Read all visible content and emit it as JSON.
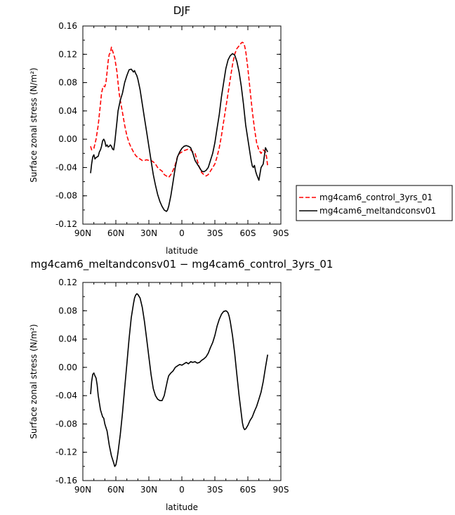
{
  "chart_data": [
    {
      "type": "line",
      "title": "DJF",
      "xlabel": "latitude",
      "ylabel": "Surface zonal stress (N/m²)",
      "xlim": [
        -90,
        90
      ],
      "ylim": [
        -0.12,
        0.16
      ],
      "x_ticks": [
        -90,
        -60,
        -30,
        0,
        30,
        60,
        90
      ],
      "x_tick_labels": [
        "90N",
        "60N",
        "30N",
        "0",
        "30S",
        "60S",
        "90S"
      ],
      "y_ticks": [
        -0.12,
        -0.08,
        -0.04,
        0.0,
        0.04,
        0.08,
        0.12,
        0.16
      ],
      "y_tick_labels": [
        "-0.12",
        "-0.08",
        "-0.04",
        "0.00",
        "0.04",
        "0.08",
        "0.12",
        "0.16"
      ],
      "grid": false,
      "legend_position": "outside-right",
      "series": [
        {
          "name": "mg4cam6_control_3yrs_01",
          "color": "#ff0000",
          "dash": "dashed",
          "x": [
            -83,
            -82,
            -80,
            -78,
            -76,
            -75,
            -74,
            -73,
            -72,
            -71,
            -70,
            -69,
            -68,
            -67,
            -66,
            -65,
            -64,
            -63,
            -62,
            -61,
            -60,
            -59,
            -58,
            -57,
            -56,
            -54,
            -52,
            -50,
            -48,
            -46,
            -44,
            -42,
            -40,
            -38,
            -36,
            -34,
            -32,
            -30,
            -28,
            -26,
            -24,
            -22,
            -20,
            -18,
            -16,
            -14,
            -12,
            -10,
            -8,
            -6,
            -4,
            -2,
            0,
            2,
            4,
            6,
            8,
            10,
            12,
            14,
            16,
            18,
            20,
            22,
            24,
            26,
            28,
            30,
            32,
            34,
            36,
            38,
            40,
            42,
            44,
            46,
            48,
            50,
            52,
            54,
            55,
            56,
            57,
            58,
            60,
            62,
            64,
            66,
            68,
            70,
            72,
            74,
            76,
            77,
            78
          ],
          "y": [
            -0.01,
            -0.015,
            -0.013,
            0.0,
            0.02,
            0.035,
            0.05,
            0.065,
            0.072,
            0.075,
            0.074,
            0.08,
            0.095,
            0.11,
            0.12,
            0.122,
            0.13,
            0.125,
            0.12,
            0.115,
            0.105,
            0.095,
            0.08,
            0.065,
            0.055,
            0.038,
            0.02,
            0.005,
            -0.005,
            -0.012,
            -0.018,
            -0.023,
            -0.026,
            -0.028,
            -0.03,
            -0.03,
            -0.029,
            -0.03,
            -0.03,
            -0.032,
            -0.035,
            -0.04,
            -0.043,
            -0.045,
            -0.05,
            -0.052,
            -0.054,
            -0.05,
            -0.044,
            -0.036,
            -0.025,
            -0.02,
            -0.018,
            -0.016,
            -0.015,
            -0.014,
            -0.015,
            -0.018,
            -0.02,
            -0.03,
            -0.04,
            -0.047,
            -0.05,
            -0.052,
            -0.05,
            -0.045,
            -0.04,
            -0.035,
            -0.025,
            -0.012,
            0.005,
            0.025,
            0.045,
            0.065,
            0.085,
            0.105,
            0.12,
            0.128,
            0.132,
            0.136,
            0.137,
            0.136,
            0.132,
            0.125,
            0.1,
            0.07,
            0.04,
            0.015,
            -0.005,
            -0.015,
            -0.02,
            -0.015,
            -0.018,
            -0.025,
            -0.038
          ]
        },
        {
          "name": "mg4cam6_meltandconsv01",
          "color": "#000000",
          "dash": "solid",
          "x": [
            -83,
            -82,
            -81,
            -80,
            -79,
            -78,
            -77,
            -76,
            -75,
            -74,
            -73,
            -72,
            -71,
            -70,
            -69,
            -68,
            -67,
            -66,
            -65,
            -64,
            -63,
            -62,
            -61,
            -60,
            -59,
            -58,
            -56,
            -54,
            -52,
            -50,
            -48,
            -46,
            -45,
            -44,
            -43,
            -42,
            -41,
            -40,
            -38,
            -36,
            -34,
            -32,
            -30,
            -28,
            -26,
            -24,
            -22,
            -20,
            -18,
            -16,
            -15,
            -14,
            -13,
            -12,
            -10,
            -8,
            -6,
            -4,
            -2,
            0,
            2,
            4,
            6,
            8,
            10,
            12,
            14,
            16,
            18,
            20,
            22,
            24,
            26,
            28,
            30,
            32,
            34,
            36,
            38,
            40,
            42,
            44,
            46,
            48,
            50,
            52,
            54,
            56,
            58,
            60,
            62,
            63,
            64,
            65,
            66,
            67,
            68,
            70,
            72,
            74,
            76,
            78
          ],
          "y": [
            -0.048,
            -0.035,
            -0.025,
            -0.022,
            -0.028,
            -0.026,
            -0.025,
            -0.024,
            -0.018,
            -0.015,
            -0.01,
            -0.002,
            -0.0,
            -0.003,
            -0.01,
            -0.008,
            -0.011,
            -0.01,
            -0.008,
            -0.01,
            -0.014,
            -0.015,
            -0.005,
            0.01,
            0.025,
            0.04,
            0.055,
            0.065,
            0.08,
            0.09,
            0.098,
            0.099,
            0.097,
            0.095,
            0.097,
            0.093,
            0.09,
            0.085,
            0.07,
            0.05,
            0.03,
            0.01,
            -0.01,
            -0.03,
            -0.05,
            -0.065,
            -0.078,
            -0.088,
            -0.095,
            -0.1,
            -0.101,
            -0.102,
            -0.1,
            -0.095,
            -0.08,
            -0.06,
            -0.04,
            -0.025,
            -0.018,
            -0.013,
            -0.01,
            -0.009,
            -0.01,
            -0.012,
            -0.02,
            -0.03,
            -0.035,
            -0.04,
            -0.045,
            -0.046,
            -0.044,
            -0.04,
            -0.03,
            -0.02,
            -0.005,
            0.015,
            0.035,
            0.06,
            0.08,
            0.1,
            0.112,
            0.118,
            0.121,
            0.119,
            0.11,
            0.095,
            0.075,
            0.05,
            0.02,
            0.0,
            -0.02,
            -0.03,
            -0.038,
            -0.04,
            -0.037,
            -0.045,
            -0.05,
            -0.058,
            -0.04,
            -0.035,
            -0.012,
            -0.018
          ]
        }
      ]
    },
    {
      "type": "line",
      "title": "mg4cam6_meltandconsv01 − mg4cam6_control_3yrs_01",
      "xlabel": "latitude",
      "ylabel": "Surface zonal stress (N/m²)",
      "xlim": [
        -90,
        90
      ],
      "ylim": [
        -0.16,
        0.12
      ],
      "x_ticks": [
        -90,
        -60,
        -30,
        0,
        30,
        60,
        90
      ],
      "x_tick_labels": [
        "90N",
        "60N",
        "30N",
        "0",
        "30S",
        "60S",
        "90S"
      ],
      "y_ticks": [
        -0.16,
        -0.12,
        -0.08,
        -0.04,
        0.0,
        0.04,
        0.08,
        0.12
      ],
      "y_tick_labels": [
        "-0.16",
        "-0.12",
        "-0.08",
        "-0.04",
        "0.00",
        "0.04",
        "0.08",
        "0.12"
      ],
      "grid": false,
      "series": [
        {
          "color": "#000000",
          "dash": "solid",
          "x": [
            -83,
            -82,
            -81,
            -80,
            -79,
            -78,
            -77,
            -76,
            -75,
            -74,
            -73,
            -72,
            -71,
            -70,
            -69,
            -68,
            -66,
            -64,
            -62,
            -61,
            -60,
            -59,
            -58,
            -56,
            -54,
            -52,
            -50,
            -48,
            -46,
            -44,
            -43,
            -42,
            -41,
            -40,
            -38,
            -36,
            -34,
            -32,
            -30,
            -28,
            -26,
            -24,
            -22,
            -20,
            -18,
            -16,
            -14,
            -13,
            -12,
            -10,
            -8,
            -6,
            -4,
            -2,
            0,
            2,
            4,
            6,
            8,
            10,
            12,
            14,
            16,
            18,
            20,
            22,
            24,
            26,
            28,
            30,
            32,
            34,
            36,
            38,
            40,
            41,
            42,
            43,
            44,
            46,
            48,
            50,
            52,
            54,
            55,
            56,
            57,
            58,
            60,
            62,
            64,
            66,
            68,
            70,
            72,
            74,
            76,
            78
          ],
          "y": [
            -0.038,
            -0.02,
            -0.01,
            -0.008,
            -0.012,
            -0.015,
            -0.025,
            -0.04,
            -0.05,
            -0.06,
            -0.065,
            -0.07,
            -0.072,
            -0.08,
            -0.085,
            -0.09,
            -0.11,
            -0.125,
            -0.135,
            -0.14,
            -0.138,
            -0.13,
            -0.12,
            -0.095,
            -0.065,
            -0.03,
            0.005,
            0.04,
            0.07,
            0.09,
            0.098,
            0.102,
            0.104,
            0.103,
            0.098,
            0.085,
            0.065,
            0.04,
            0.015,
            -0.01,
            -0.03,
            -0.04,
            -0.045,
            -0.047,
            -0.047,
            -0.04,
            -0.025,
            -0.018,
            -0.012,
            -0.008,
            -0.005,
            0.0,
            0.002,
            0.004,
            0.003,
            0.005,
            0.007,
            0.005,
            0.008,
            0.007,
            0.008,
            0.006,
            0.007,
            0.01,
            0.012,
            0.015,
            0.02,
            0.028,
            0.035,
            0.045,
            0.058,
            0.068,
            0.075,
            0.079,
            0.08,
            0.079,
            0.077,
            0.072,
            0.065,
            0.045,
            0.02,
            -0.01,
            -0.04,
            -0.065,
            -0.078,
            -0.085,
            -0.088,
            -0.087,
            -0.082,
            -0.075,
            -0.07,
            -0.062,
            -0.055,
            -0.045,
            -0.035,
            -0.02,
            0.0,
            0.018
          ]
        }
      ]
    }
  ]
}
